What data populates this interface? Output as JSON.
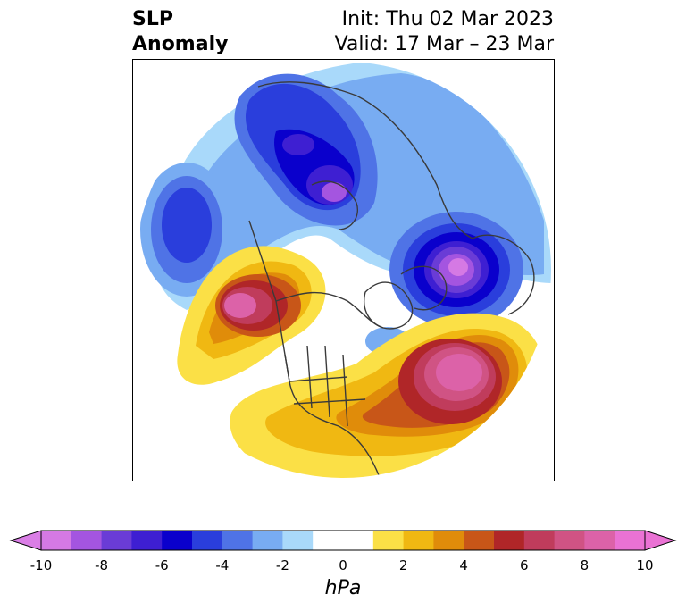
{
  "header": {
    "title_line1": "SLP",
    "title_line2": "Anomaly",
    "init_text": "Init: Thu 02 Mar 2023",
    "valid_text": "Valid: 17 Mar – 23 Mar"
  },
  "map": {
    "projection": "north-polar-stereographic",
    "coastline_color": "#3a3a3a",
    "regions": [
      {
        "name": "north-pacific-low",
        "min_anomaly": -5
      },
      {
        "name": "siberia-arctic-low",
        "min_anomaly": -8
      },
      {
        "name": "scandinavia-low",
        "min_anomaly": -10
      },
      {
        "name": "alaska-high",
        "max_anomaly": 8
      },
      {
        "name": "north-atlantic-high",
        "max_anomaly": 8
      },
      {
        "name": "eastern-us-high",
        "max_anomaly": 6
      }
    ]
  },
  "colorbar": {
    "unit_label": "hPa",
    "ticks": [
      "-10",
      "-8",
      "-6",
      "-4",
      "-2",
      "0",
      "2",
      "4",
      "6",
      "8",
      "10"
    ],
    "range": [
      -10,
      10
    ],
    "interval": 1,
    "extend": "both",
    "colors": [
      "#d579e4",
      "#a455e0",
      "#6a3cd6",
      "#3e1fd2",
      "#0a00cc",
      "#2a3edc",
      "#4f73e6",
      "#78acf2",
      "#a9d9fa",
      "#ffffff",
      "#ffffff",
      "#fbe046",
      "#f0b812",
      "#e08c0a",
      "#c85618",
      "#b02628",
      "#c03c5c",
      "#d05384",
      "#dc62a8",
      "#ea72d4"
    ],
    "under_color": "#da7ee6",
    "over_color": "#ea72d4"
  }
}
